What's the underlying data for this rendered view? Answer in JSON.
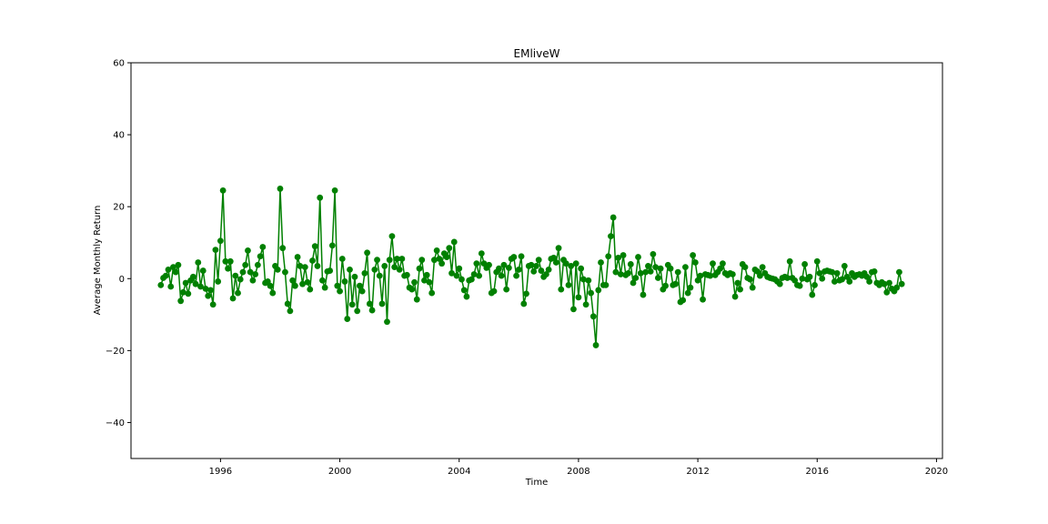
{
  "chart_data": {
    "type": "line",
    "title": "EMliveW",
    "xlabel": "Time",
    "ylabel": "Average Monthly Return",
    "xlim": [
      1993.0,
      2020.2
    ],
    "ylim": [
      -50,
      60
    ],
    "xticks": [
      1996,
      2000,
      2004,
      2008,
      2012,
      2016,
      2020
    ],
    "yticks": [
      -40,
      -20,
      0,
      20,
      40,
      60
    ],
    "tick_labels_y": [
      "−40",
      "−20",
      "0",
      "20",
      "40",
      "60"
    ],
    "grid": false,
    "legend": "none",
    "color": "#008000",
    "marker": "circle",
    "x_start": 1994.0,
    "x_step_months": 1,
    "series": [
      {
        "values": [
          -1.8,
          0.2,
          0.8,
          2.5,
          -2.2,
          3.2,
          1.8,
          3.8,
          -6.2,
          -3.8,
          -1.2,
          -4.2,
          -0.5,
          0.5,
          -1.5,
          4.5,
          -2.2,
          2.2,
          -2.8,
          -4.8,
          -3.2,
          -7.2,
          8.0,
          -0.8,
          10.5,
          24.5,
          4.8,
          2.8,
          4.8,
          -5.5,
          0.8,
          -4.0,
          -0.2,
          1.8,
          3.8,
          7.8,
          1.8,
          -0.5,
          1.2,
          3.8,
          6.2,
          8.8,
          -1.2,
          -0.8,
          -2.0,
          -4.0,
          3.5,
          2.5,
          25.0,
          8.5,
          1.8,
          -7.0,
          -9.0,
          -0.5,
          -2.0,
          6.0,
          3.5,
          -1.5,
          3.2,
          -1.0,
          -3.0,
          5.0,
          9.0,
          3.5,
          22.5,
          -0.5,
          -2.5,
          2.0,
          2.2,
          9.2,
          24.5,
          -2.0,
          -3.5,
          5.5,
          -0.8,
          -11.2,
          2.5,
          -7.2,
          0.5,
          -9.0,
          -2.0,
          -3.5,
          1.5,
          7.2,
          -7.0,
          -8.8,
          2.5,
          5.2,
          0.8,
          -7.0,
          3.5,
          -12.0,
          5.2,
          11.8,
          3.2,
          5.5,
          2.5,
          5.5,
          0.8,
          1.0,
          -2.5,
          -3.0,
          -1.0,
          -5.8,
          2.8,
          5.2,
          -0.5,
          1.0,
          -1.0,
          -4.0,
          5.2,
          7.8,
          5.5,
          4.2,
          7.0,
          6.0,
          8.5,
          1.5,
          10.2,
          0.8,
          2.8,
          -0.2,
          -3.2,
          -5.0,
          -0.5,
          -0.2,
          1.2,
          4.2,
          0.8,
          7.0,
          4.2,
          3.0,
          3.8,
          -4.0,
          -3.5,
          1.8,
          2.8,
          0.8,
          3.8,
          -3.0,
          3.0,
          5.5,
          6.0,
          0.8,
          2.5,
          6.2,
          -7.0,
          -4.2,
          3.5,
          3.8,
          2.0,
          3.5,
          5.2,
          2.2,
          0.5,
          1.2,
          2.5,
          5.5,
          5.8,
          4.5,
          8.5,
          -3.0,
          5.2,
          4.2,
          -1.8,
          3.5,
          -8.5,
          4.2,
          -5.2,
          2.8,
          -0.2,
          -7.2,
          -0.5,
          -4.0,
          -10.5,
          -18.5,
          -3.2,
          4.5,
          -1.8,
          -1.8,
          6.2,
          11.8,
          17.0,
          1.8,
          5.8,
          1.2,
          6.5,
          1.0,
          1.5,
          4.0,
          -1.2,
          0.2,
          6.0,
          1.5,
          -4.5,
          1.8,
          3.5,
          2.0,
          6.8,
          3.2,
          0.2,
          2.8,
          -3.0,
          -2.0,
          3.8,
          2.8,
          -1.8,
          -1.5,
          1.8,
          -6.5,
          -6.0,
          3.2,
          -4.0,
          -2.5,
          6.5,
          4.5,
          -0.5,
          0.8,
          -5.8,
          1.2,
          1.0,
          0.8,
          4.2,
          1.0,
          1.8,
          2.8,
          4.2,
          1.5,
          1.0,
          1.5,
          1.2,
          -5.0,
          -1.2,
          -3.0,
          4.0,
          3.2,
          0.2,
          -0.2,
          -2.5,
          2.5,
          2.0,
          0.8,
          3.2,
          1.5,
          0.5,
          0.2,
          0.0,
          -0.2,
          -0.8,
          -1.5,
          0.2,
          0.5,
          0.2,
          4.8,
          0.2,
          -0.5,
          -1.8,
          -2.0,
          0.0,
          4.0,
          -0.2,
          0.5,
          -4.5,
          -1.8,
          4.8,
          1.5,
          0.0,
          2.0,
          2.2,
          2.0,
          1.8,
          -0.8,
          1.5,
          -0.5,
          -0.2,
          3.5,
          0.5,
          -0.8,
          1.5,
          0.5,
          1.0,
          1.2,
          0.8,
          1.5,
          0.5,
          -0.8,
          1.8,
          2.0,
          -1.2,
          -1.8,
          -1.0,
          -1.5,
          -3.8,
          -1.2,
          -2.8,
          -3.5,
          -2.5,
          1.8,
          -1.5
        ]
      }
    ]
  }
}
